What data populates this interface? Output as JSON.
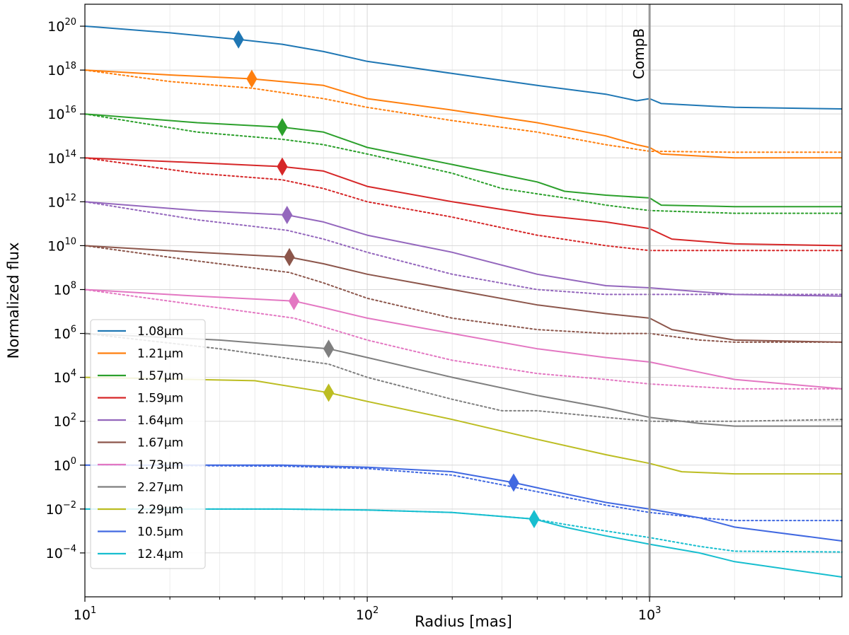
{
  "chart_data": {
    "type": "line",
    "title": "",
    "xlabel": "Radius [mas]",
    "ylabel": "Normalized flux",
    "xscale": "log",
    "yscale": "log",
    "xlim": [
      10,
      4800
    ],
    "ylim": [
      1e-06,
      1e+21
    ],
    "x_ticks": [
      {
        "value": 10,
        "base": "10",
        "exp": "1"
      },
      {
        "value": 100,
        "base": "10",
        "exp": "2"
      },
      {
        "value": 1000,
        "base": "10",
        "exp": "3"
      }
    ],
    "y_ticks": [
      {
        "value": 1e+20,
        "base": "10",
        "exp": "20"
      },
      {
        "value": 1e+18,
        "base": "10",
        "exp": "18"
      },
      {
        "value": 1e+16,
        "base": "10",
        "exp": "16"
      },
      {
        "value": 100000000000000.0,
        "base": "10",
        "exp": "14"
      },
      {
        "value": 1000000000000.0,
        "base": "10",
        "exp": "12"
      },
      {
        "value": 10000000000.0,
        "base": "10",
        "exp": "10"
      },
      {
        "value": 100000000.0,
        "base": "10",
        "exp": "8"
      },
      {
        "value": 1000000.0,
        "base": "10",
        "exp": "6"
      },
      {
        "value": 10000.0,
        "base": "10",
        "exp": "4"
      },
      {
        "value": 100.0,
        "base": "10",
        "exp": "2"
      },
      {
        "value": 1,
        "base": "10",
        "exp": "0"
      },
      {
        "value": 0.01,
        "base": "10",
        "exp": "−2"
      },
      {
        "value": 0.0001,
        "base": "10",
        "exp": "−4"
      }
    ],
    "grid": true,
    "legend_position": "lower-left",
    "annotation": {
      "label": "CompB",
      "x": 1000
    },
    "series": [
      {
        "name": "1.08μm",
        "color": "#1f77b4",
        "marker_x": 35,
        "solid": {
          "x": [
            10,
            20,
            35,
            50,
            70,
            100,
            200,
            400,
            700,
            900,
            1000,
            1100,
            2000,
            4800
          ],
          "y": [
            1e+20,
            5e+19,
            2.5e+19,
            1.5e+19,
            7e+18,
            2.5e+18,
            7e+17,
            2e+17,
            8e+16,
            4e+16,
            5e+16,
            3e+16,
            2e+16,
            1.7e+16
          ]
        },
        "dotted": null
      },
      {
        "name": "1.21μm",
        "color": "#ff7f0e",
        "marker_x": 39,
        "solid": {
          "x": [
            10,
            20,
            39,
            70,
            100,
            200,
            400,
            700,
            900,
            1000,
            1100,
            2000,
            4800
          ],
          "y": [
            1e+18,
            6e+17,
            4e+17,
            2e+17,
            5e+16,
            1.5e+16,
            4000000000000000.0,
            1000000000000000.0,
            400000000000000.0,
            300000000000000.0,
            150000000000000.0,
            100000000000000.0,
            100000000000000.0
          ]
        },
        "dotted": {
          "x": [
            10,
            20,
            39,
            70,
            100,
            200,
            400,
            700,
            1000,
            2000,
            4800
          ],
          "y": [
            1e+18,
            3e+17,
            1.5e+17,
            5e+16,
            2e+16,
            5000000000000000.0,
            1500000000000000.0,
            400000000000000.0,
            200000000000000.0,
            180000000000000.0,
            180000000000000.0
          ]
        }
      },
      {
        "name": "1.57μm",
        "color": "#2ca02c",
        "marker_x": 50,
        "solid": {
          "x": [
            10,
            25,
            50,
            70,
            100,
            200,
            400,
            500,
            700,
            1000,
            1100,
            2000,
            4800
          ],
          "y": [
            1e+16,
            4000000000000000.0,
            2500000000000000.0,
            1500000000000000.0,
            300000000000000.0,
            50000000000000.0,
            8000000000000.0,
            3000000000000.0,
            2000000000000.0,
            1500000000000.0,
            700000000000.0,
            600000000000.0,
            600000000000.0
          ]
        },
        "dotted": {
          "x": [
            10,
            25,
            50,
            70,
            100,
            200,
            300,
            500,
            700,
            1000,
            2000,
            4800
          ],
          "y": [
            1e+16,
            1500000000000000.0,
            700000000000000.0,
            400000000000000.0,
            150000000000000.0,
            20000000000000.0,
            4000000000000.0,
            1500000000000.0,
            700000000000.0,
            400000000000.0,
            300000000000.0,
            300000000000.0
          ]
        }
      },
      {
        "name": "1.59μm",
        "color": "#d62728",
        "marker_x": 50,
        "solid": {
          "x": [
            10,
            25,
            50,
            70,
            100,
            200,
            400,
            700,
            1000,
            1200,
            2000,
            4800
          ],
          "y": [
            100000000000000.0,
            60000000000000.0,
            40000000000000.0,
            25000000000000.0,
            5000000000000.0,
            1000000000000.0,
            250000000000.0,
            120000000000.0,
            60000000000.0,
            20000000000.0,
            12000000000.0,
            10000000000.0
          ]
        },
        "dotted": {
          "x": [
            10,
            25,
            50,
            70,
            100,
            200,
            400,
            700,
            1000,
            2000,
            4800
          ],
          "y": [
            100000000000000.0,
            20000000000000.0,
            10000000000000.0,
            4000000000000.0,
            1000000000000.0,
            200000000000.0,
            30000000000.0,
            10000000000.0,
            6000000000.0,
            6000000000.0,
            6000000000.0
          ]
        }
      },
      {
        "name": "1.64μm",
        "color": "#9467bd",
        "marker_x": 52,
        "solid": {
          "x": [
            10,
            25,
            52,
            70,
            100,
            200,
            400,
            700,
            1000,
            2000,
            4800
          ],
          "y": [
            1000000000000.0,
            400000000000.0,
            250000000000.0,
            120000000000.0,
            30000000000.0,
            5000000000.0,
            500000000.0,
            150000000.0,
            120000000.0,
            60000000.0,
            50000000.0
          ]
        },
        "dotted": {
          "x": [
            10,
            25,
            52,
            70,
            100,
            200,
            400,
            700,
            1000,
            2000,
            4800
          ],
          "y": [
            1000000000000.0,
            150000000000.0,
            50000000000.0,
            20000000000.0,
            5000000000.0,
            500000000.0,
            100000000.0,
            60000000.0,
            60000000.0,
            60000000.0,
            60000000.0
          ]
        }
      },
      {
        "name": "1.67μm",
        "color": "#8c564b",
        "marker_x": 53,
        "solid": {
          "x": [
            10,
            25,
            53,
            70,
            100,
            200,
            400,
            700,
            1000,
            1200,
            2000,
            4800
          ],
          "y": [
            10000000000.0,
            5000000000.0,
            3000000000.0,
            1500000000.0,
            500000000.0,
            100000000.0,
            20000000.0,
            8000000.0,
            5000000.0,
            1500000.0,
            500000.0,
            400000.0
          ]
        },
        "dotted": {
          "x": [
            10,
            25,
            53,
            70,
            100,
            200,
            400,
            700,
            1000,
            1500,
            2000,
            4800
          ],
          "y": [
            10000000000.0,
            2000000000.0,
            600000000.0,
            200000000.0,
            40000000.0,
            5000000.0,
            1500000.0,
            1000000.0,
            1000000.0,
            500000.0,
            400000.0,
            400000.0
          ]
        }
      },
      {
        "name": "1.73μm",
        "color": "#e377c2",
        "marker_x": 55,
        "solid": {
          "x": [
            10,
            25,
            55,
            70,
            100,
            200,
            400,
            700,
            1000,
            2000,
            4800
          ],
          "y": [
            100000000.0,
            50000000.0,
            30000000.0,
            15000000.0,
            5000000.0,
            1000000.0,
            200000.0,
            80000.0,
            50000.0,
            8000.0,
            3000.0
          ]
        },
        "dotted": {
          "x": [
            10,
            25,
            55,
            70,
            100,
            200,
            400,
            700,
            1000,
            2000,
            4800
          ],
          "y": [
            100000000.0,
            20000000.0,
            5000000.0,
            2000000.0,
            500000.0,
            60000.0,
            15000.0,
            8000.0,
            5000.0,
            3000.0,
            3000.0
          ]
        }
      },
      {
        "name": "2.27μm",
        "color": "#7f7f7f",
        "marker_x": 73,
        "solid": {
          "x": [
            10,
            30,
            73,
            100,
            200,
            400,
            700,
            1000,
            1500,
            2000,
            4800
          ],
          "y": [
            1000000.0,
            500000.0,
            200000.0,
            80000.0,
            10000.0,
            1500.0,
            400.0,
            150.0,
            80.0,
            60.0,
            60.0
          ]
        },
        "dotted": {
          "x": [
            10,
            30,
            73,
            100,
            200,
            300,
            400,
            700,
            1000,
            2000,
            4800
          ],
          "y": [
            1000000.0,
            200000.0,
            40000.0,
            10000.0,
            1000.0,
            300.0,
            300.0,
            150.0,
            100.0,
            100.0,
            120.0
          ]
        }
      },
      {
        "name": "2.29μm",
        "color": "#bcbd22",
        "marker_x": 73,
        "solid": {
          "x": [
            10,
            40,
            73,
            100,
            200,
            400,
            700,
            1000,
            1300,
            2000,
            4800
          ],
          "y": [
            10000.0,
            7000.0,
            2000.0,
            800.0,
            120.0,
            15.0,
            3,
            1.2,
            0.5,
            0.4,
            0.4
          ]
        },
        "dotted": null
      },
      {
        "name": "10.5μm",
        "color": "#4169e1",
        "marker_x": 330,
        "solid": {
          "x": [
            10,
            50,
            100,
            200,
            330,
            500,
            700,
            1000,
            1500,
            2000,
            4800
          ],
          "y": [
            1,
            1,
            0.8,
            0.5,
            0.16,
            0.05,
            0.02,
            0.01,
            0.004,
            0.0015,
            0.00035
          ]
        },
        "dotted": {
          "x": [
            10,
            50,
            100,
            200,
            330,
            500,
            700,
            1000,
            1500,
            2000,
            4800
          ],
          "y": [
            1,
            0.9,
            0.7,
            0.35,
            0.1,
            0.035,
            0.015,
            0.007,
            0.004,
            0.003,
            0.003
          ]
        }
      },
      {
        "name": "12.4μm",
        "color": "#17becf",
        "marker_x": 390,
        "solid": {
          "x": [
            10,
            50,
            100,
            200,
            390,
            500,
            700,
            1000,
            1500,
            2000,
            4800
          ],
          "y": [
            0.01,
            0.01,
            0.009,
            0.007,
            0.0035,
            0.0015,
            0.0006,
            0.00025,
            0.0001,
            4e-05,
            8e-06
          ]
        },
        "dotted": {
          "x": [
            10,
            50,
            100,
            200,
            390,
            500,
            700,
            1000,
            1500,
            2000,
            4800
          ],
          "y": [
            0.01,
            0.01,
            0.009,
            0.007,
            0.0035,
            0.002,
            0.001,
            0.0005,
            0.0002,
            0.00012,
            0.00011
          ]
        }
      }
    ]
  }
}
